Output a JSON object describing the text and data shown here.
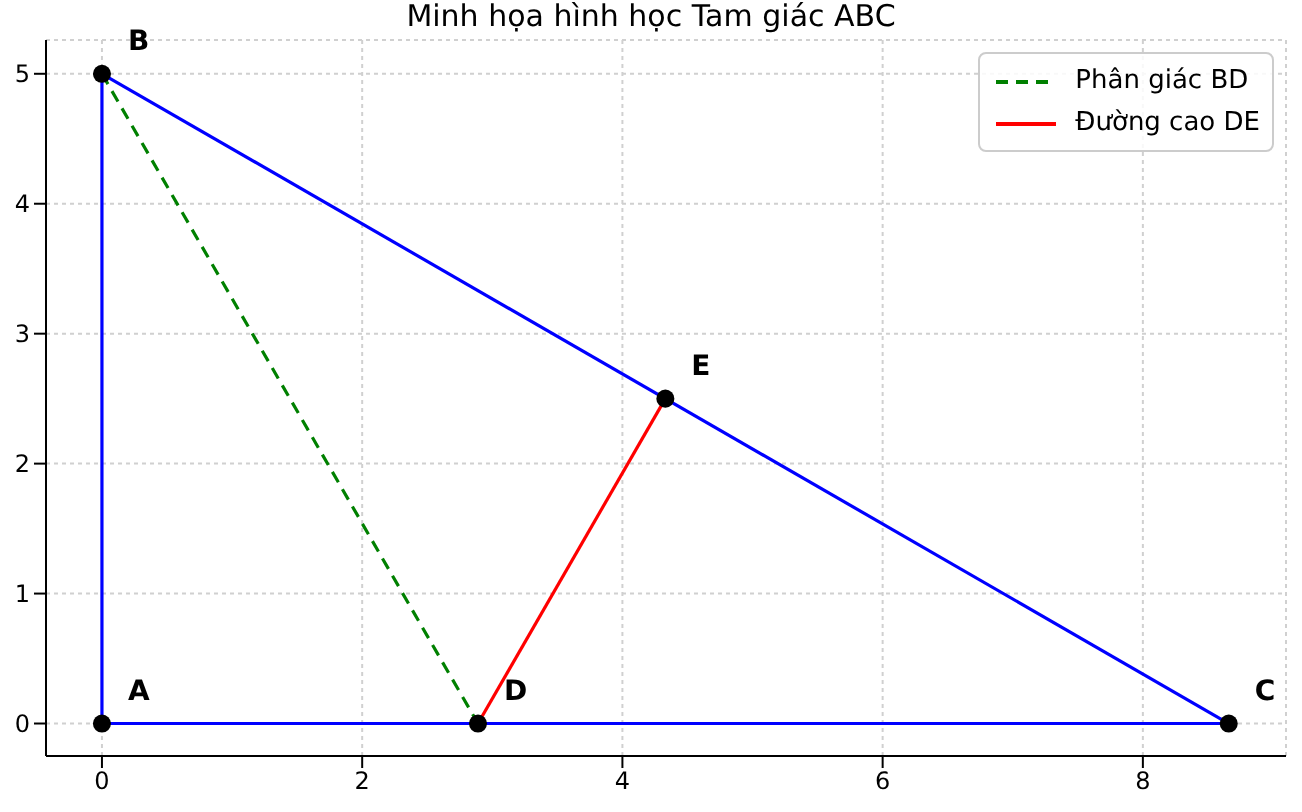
{
  "chart_data": {
    "type": "line",
    "title": "Minh họa hình học Tam giác ABC",
    "xlim": [
      -0.43,
      9.1
    ],
    "xticks": [
      0,
      2,
      4,
      6,
      8
    ],
    "ylim": [
      -0.25,
      5.26
    ],
    "yticks": [
      0,
      1,
      2,
      3,
      4,
      5
    ],
    "grid": true,
    "legend": "top right",
    "marker": "none",
    "series": [
      {
        "color": "#0000ff",
        "line_style": "solid",
        "x": [
          0,
          8.66
        ],
        "values": [
          0,
          0
        ]
      },
      {
        "color": "#0000ff",
        "line_style": "solid",
        "x": [
          0,
          8.66
        ],
        "values": [
          5,
          0
        ]
      },
      {
        "color": "#0000ff",
        "line_style": "solid",
        "x": [
          0,
          0
        ],
        "values": [
          0,
          5
        ]
      },
      {
        "name": "Phân giác BD",
        "color": "#008000",
        "line_style": "dashed",
        "x": [
          0,
          2.89
        ],
        "values": [
          5,
          0
        ]
      },
      {
        "name": "Đường cao DE",
        "color": "#ff0000",
        "line_style": "solid",
        "x": [
          2.89,
          4.33
        ],
        "values": [
          0,
          2.5
        ]
      },
      {
        "type": "scatter",
        "color": "#000000",
        "marker": "circle",
        "x": [
          0,
          0,
          8.66,
          2.89,
          4.33
        ],
        "values": [
          0,
          5,
          0,
          0,
          2.5
        ]
      }
    ],
    "annotations": [
      {
        "text": "A",
        "x": 0,
        "y": 0
      },
      {
        "text": "B",
        "x": 0,
        "y": 5
      },
      {
        "text": "C",
        "x": 8.66,
        "y": 0
      },
      {
        "text": "D",
        "x": 2.89,
        "y": 0
      },
      {
        "text": "E",
        "x": 4.33,
        "y": 2.5
      }
    ]
  }
}
